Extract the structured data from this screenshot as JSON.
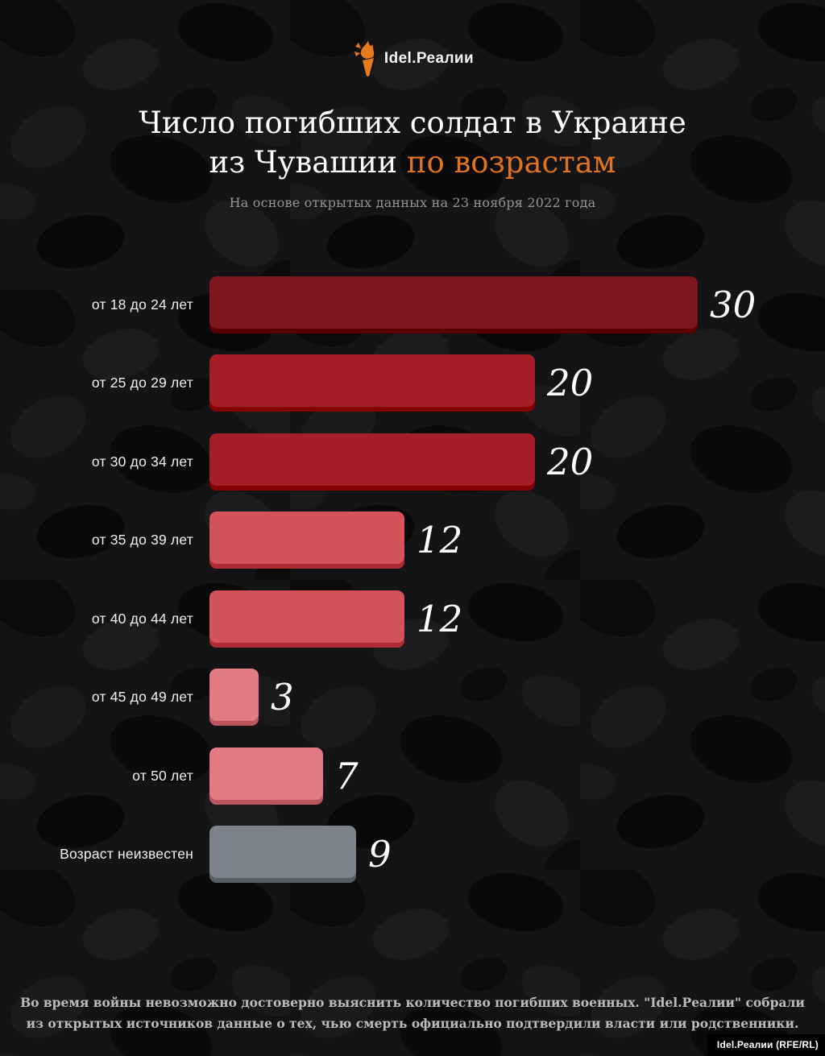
{
  "logo": {
    "brand": "Idel.Реалии",
    "icon": "torch-icon",
    "icon_color": "#e87a1e"
  },
  "title": {
    "line1": "Число погибших солдат в Украине",
    "line2_white": "из Чувашии ",
    "line2_accent": "по возрастам",
    "accent_color": "#e0731f"
  },
  "subtitle": "На основе открытых данных на 23 ноября 2022 года",
  "chart_data": {
    "type": "bar",
    "orientation": "horizontal",
    "title": "Число погибших солдат в Украине из Чувашии по возрастам",
    "categories": [
      "от 18 до 24 лет",
      "от 25 до 29 лет",
      "от 30 до 34 лет",
      "от 35 до 39 лет",
      "от 40 до 44 лет",
      "от 45 до 49 лет",
      "от 50 лет",
      "Возраст неизвестен"
    ],
    "values": [
      30,
      20,
      20,
      12,
      12,
      3,
      7,
      9
    ],
    "bar_colors": [
      "#7e161d",
      "#a81e26",
      "#a81e26",
      "#d4525a",
      "#d4525a",
      "#e27b84",
      "#e27b84",
      "#7c838c"
    ],
    "bar_edge_colors": [
      "#5f1016",
      "#871820",
      "#b03f48",
      "#c4626c",
      "#646b74"
    ],
    "xlim": [
      0,
      30
    ],
    "grid": false,
    "legend": false,
    "value_labels": "end-of-bar"
  },
  "footer": {
    "line1": "Во время войны невозможно достоверно выяснить количество погибших военных. \"Idel.Реалии\" собрали",
    "line2": "из открытых источников данные о тех, чью смерть официально подтвердили власти или родственники."
  },
  "watermark": "Idel.Реалии (RFE/RL)"
}
